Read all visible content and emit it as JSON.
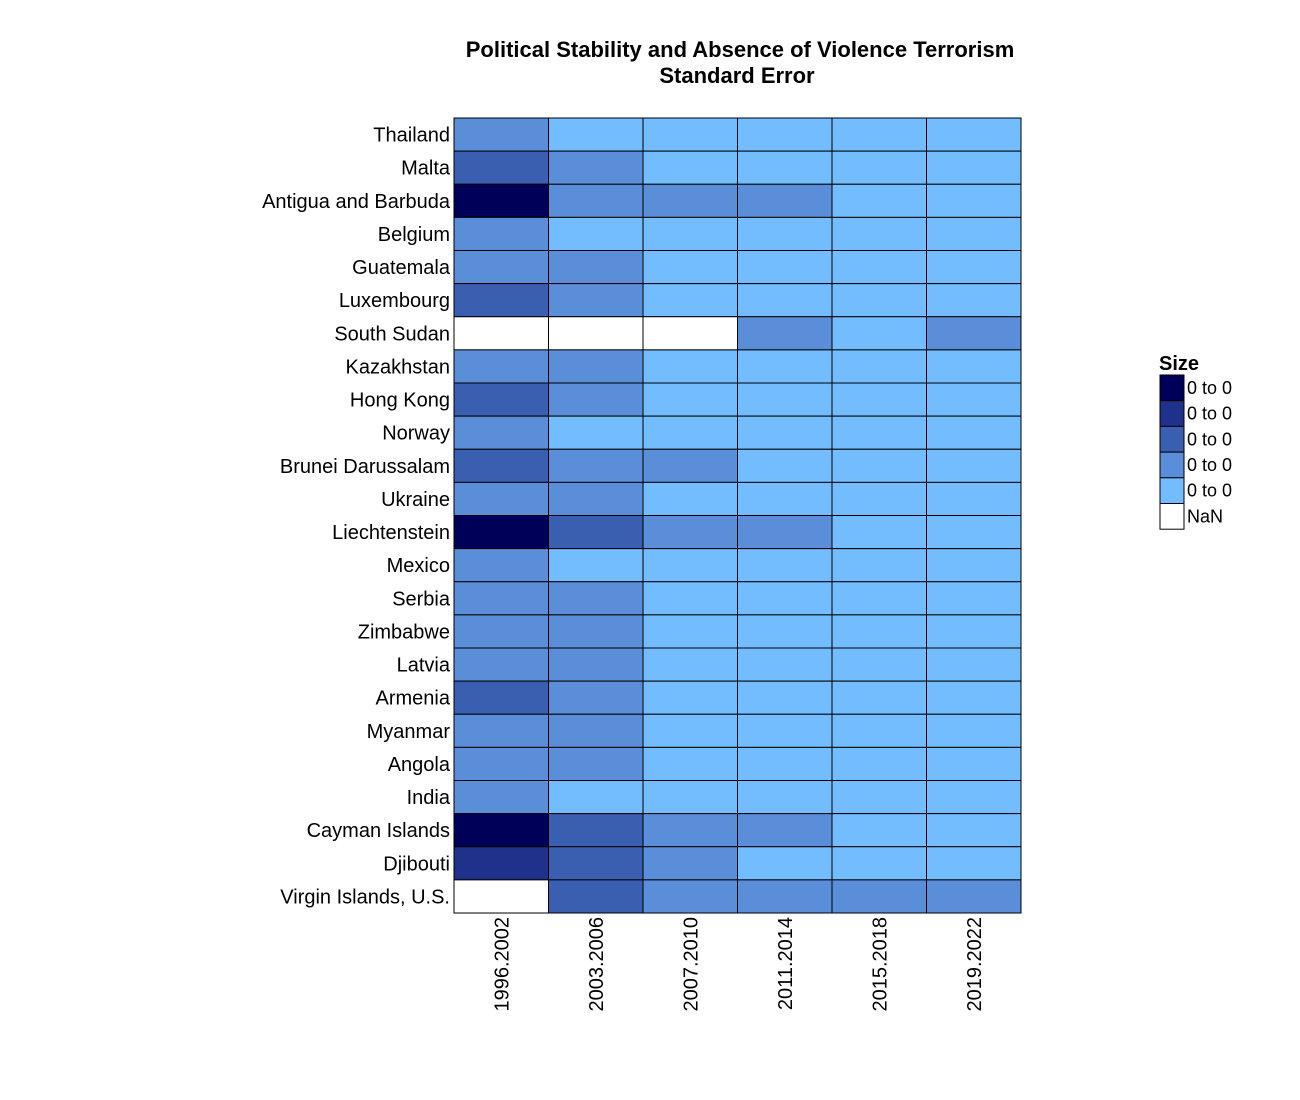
{
  "chart_data": {
    "type": "heatmap",
    "title": "Political Stability and Absence of Violence Terrorism",
    "subtitle": "Standard Error",
    "xlabel": "",
    "ylabel": "",
    "columns": [
      "1996.2002",
      "2003.2006",
      "2007.2010",
      "2011.2014",
      "2015.2018",
      "2019.2022"
    ],
    "rows": [
      "Thailand",
      "Malta",
      "Antigua and Barbuda",
      "Belgium",
      "Guatemala",
      "Luxembourg",
      "South Sudan",
      "Kazakhstan",
      "Hong Kong",
      "Norway",
      "Brunei Darussalam",
      "Ukraine",
      "Liechtenstein",
      "Mexico",
      "Serbia",
      "Zimbabwe",
      "Latvia",
      "Armenia",
      "Myanmar",
      "Angola",
      "India",
      "Cayman Islands",
      "Djibouti",
      "Virgin Islands, U.S."
    ],
    "values": [
      [
        2,
        1,
        1,
        1,
        1,
        1
      ],
      [
        3,
        2,
        1,
        1,
        1,
        1
      ],
      [
        5,
        2,
        2,
        2,
        1,
        1
      ],
      [
        2,
        1,
        1,
        1,
        1,
        1
      ],
      [
        2,
        2,
        1,
        1,
        1,
        1
      ],
      [
        3,
        2,
        1,
        1,
        1,
        1
      ],
      [
        null,
        null,
        null,
        2,
        1,
        2
      ],
      [
        2,
        2,
        1,
        1,
        1,
        1
      ],
      [
        3,
        2,
        1,
        1,
        1,
        1
      ],
      [
        2,
        1,
        1,
        1,
        1,
        1
      ],
      [
        3,
        2,
        2,
        1,
        1,
        1
      ],
      [
        2,
        2,
        1,
        1,
        1,
        1
      ],
      [
        5,
        3,
        2,
        2,
        1,
        1
      ],
      [
        2,
        1,
        1,
        1,
        1,
        1
      ],
      [
        2,
        2,
        1,
        1,
        1,
        1
      ],
      [
        2,
        2,
        1,
        1,
        1,
        1
      ],
      [
        2,
        2,
        1,
        1,
        1,
        1
      ],
      [
        3,
        2,
        1,
        1,
        1,
        1
      ],
      [
        2,
        2,
        1,
        1,
        1,
        1
      ],
      [
        2,
        2,
        1,
        1,
        1,
        1
      ],
      [
        2,
        1,
        1,
        1,
        1,
        1
      ],
      [
        5,
        3,
        2,
        2,
        1,
        1
      ],
      [
        4,
        3,
        2,
        1,
        1,
        1
      ],
      [
        null,
        3,
        2,
        2,
        2,
        2
      ]
    ],
    "value_note": "Values are legend bin levels (1 = lightest, 5 = darkest); null = NaN",
    "legend": {
      "title": "Size",
      "position": "right",
      "entries": [
        {
          "label": "0 to 0",
          "color": "#000059",
          "level": 5
        },
        {
          "label": "0 to 0",
          "color": "#1f318a",
          "level": 4
        },
        {
          "label": "0 to 0",
          "color": "#3a5fb1",
          "level": 3
        },
        {
          "label": "0 to 0",
          "color": "#5a8ed8",
          "level": 2
        },
        {
          "label": "0 to 0",
          "color": "#73bdfe",
          "level": 1
        },
        {
          "label": "NaN",
          "color": "#ffffff",
          "level": null
        }
      ]
    }
  }
}
